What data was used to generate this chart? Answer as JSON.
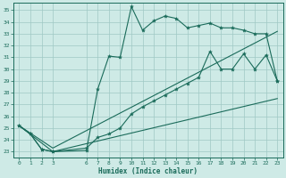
{
  "xlabel": "Humidex (Indice chaleur)",
  "bg_color": "#ceeae6",
  "grid_color": "#a0c8c4",
  "line_color": "#1a6b5a",
  "xlim": [
    -0.5,
    23.5
  ],
  "ylim": [
    22.5,
    35.6
  ],
  "xticks": [
    0,
    1,
    2,
    3,
    6,
    7,
    8,
    9,
    10,
    11,
    12,
    13,
    14,
    15,
    16,
    17,
    18,
    19,
    20,
    21,
    22,
    23
  ],
  "yticks": [
    23,
    24,
    25,
    26,
    27,
    28,
    29,
    30,
    31,
    32,
    33,
    34,
    35
  ],
  "line1_x": [
    0,
    1,
    2,
    3,
    6,
    7,
    8,
    9,
    10,
    11,
    12,
    13,
    14,
    15,
    16,
    17,
    18,
    19,
    20,
    21,
    22,
    23
  ],
  "line1_y": [
    25.2,
    24.5,
    23.2,
    23.0,
    23.1,
    28.3,
    31.1,
    31.0,
    35.3,
    33.3,
    34.1,
    34.5,
    34.3,
    33.5,
    33.7,
    33.9,
    33.5,
    33.5,
    33.3,
    33.0,
    33.0,
    29.0
  ],
  "line2_x": [
    0,
    1,
    2,
    3,
    6,
    7,
    8,
    9,
    10,
    11,
    12,
    13,
    14,
    15,
    16,
    17,
    18,
    19,
    20,
    21,
    22,
    23
  ],
  "line2_y": [
    25.2,
    24.5,
    23.2,
    23.0,
    23.3,
    24.2,
    24.5,
    25.0,
    26.2,
    26.8,
    27.3,
    27.8,
    28.3,
    28.8,
    29.3,
    31.5,
    30.0,
    30.0,
    31.3,
    30.0,
    31.2,
    29.0
  ],
  "line3_x": [
    0,
    3,
    23
  ],
  "line3_y": [
    25.2,
    23.0,
    27.5
  ],
  "line4_x": [
    0,
    3,
    23
  ],
  "line4_y": [
    25.2,
    23.3,
    33.2
  ]
}
